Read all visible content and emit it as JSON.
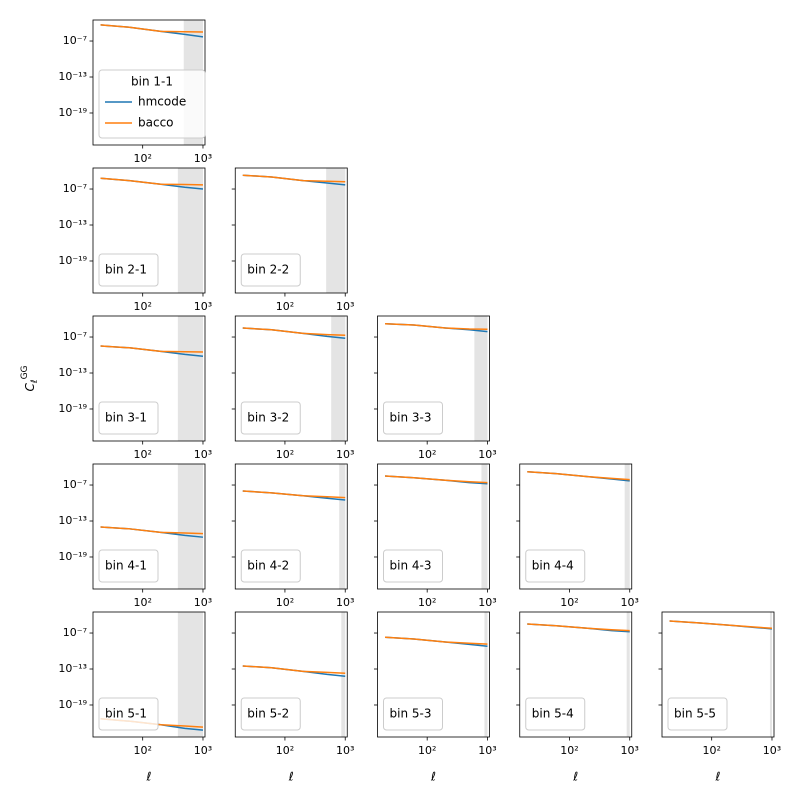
{
  "chart_data": [
    {
      "type": "line",
      "legend_title": "bin 1-1",
      "legend_loc": "lower left",
      "xscale": "log",
      "yscale": "log",
      "x": [
        20,
        60,
        200,
        500,
        1000
      ],
      "series": [
        {
          "name": "hmcode",
          "color": "#1f77b4",
          "values": [
            5e-05,
            2e-05,
            4e-06,
            1.26e-06,
            5e-07
          ]
        },
        {
          "name": "bacco",
          "color": "#ff7f0e",
          "values": [
            5e-05,
            2e-05,
            4e-06,
            3.5e-06,
            3.2e-06
          ]
        }
      ],
      "xlim": [
        15,
        1080
      ],
      "ylim": [
        4.6e-25,
        0.00032
      ],
      "xticks": [
        {
          "value": 100,
          "label": "10²"
        },
        {
          "value": 1000,
          "label": "10³"
        }
      ],
      "yticks": [
        {
          "value": 1e-19,
          "label": "10⁻¹⁹"
        },
        {
          "value": 1e-13,
          "label": "10⁻¹³"
        },
        {
          "value": 1e-07,
          "label": "10⁻⁷"
        }
      ],
      "shade": [
        480,
        1000
      ],
      "shade_color": "#e4e4e4"
    },
    {
      "type": "line",
      "legend_title": "bin 2-1",
      "legend_loc": "lower left",
      "xscale": "log",
      "yscale": "log",
      "x": [
        20,
        60,
        200,
        500,
        1000
      ],
      "series": [
        {
          "color": "#1f77b4",
          "values": [
            6.3e-06,
            2.5e-06,
            6.3e-07,
            2e-07,
            1e-07
          ]
        },
        {
          "color": "#ff7f0e",
          "values": [
            6.3e-06,
            2.5e-06,
            6.3e-07,
            5.6e-07,
            5e-07
          ]
        }
      ],
      "xlim": [
        15,
        1080
      ],
      "ylim": [
        4.6e-25,
        0.00032
      ],
      "xticks": [
        {
          "value": 100,
          "label": "10²"
        },
        {
          "value": 1000,
          "label": "10³"
        }
      ],
      "yticks": [
        {
          "value": 1e-19,
          "label": "10⁻¹⁹"
        },
        {
          "value": 1e-13,
          "label": "10⁻¹³"
        },
        {
          "value": 1e-07,
          "label": "10⁻⁷"
        }
      ],
      "shade": [
        383,
        1000
      ],
      "shade_color": "#e4e4e4"
    },
    {
      "type": "line",
      "legend_title": "bin 2-2",
      "legend_loc": "lower left",
      "xscale": "log",
      "yscale": "log",
      "x": [
        20,
        60,
        200,
        500,
        1000
      ],
      "series": [
        {
          "color": "#1f77b4",
          "values": [
            2e-05,
            1e-05,
            2.5e-06,
            1e-06,
            5e-07
          ]
        },
        {
          "color": "#ff7f0e",
          "values": [
            2e-05,
            1e-05,
            2.5e-06,
            2e-06,
            1.6e-06
          ]
        }
      ],
      "xlim": [
        15,
        1080
      ],
      "ylim": [
        4.6e-25,
        0.00032
      ],
      "xticks": [
        {
          "value": 100,
          "label": "10²"
        },
        {
          "value": 1000,
          "label": "10³"
        }
      ],
      "yticks": [
        1e-19,
        1e-13,
        1e-07
      ],
      "shade": [
        483,
        1000
      ],
      "shade_color": "#e4e4e4"
    },
    {
      "type": "line",
      "legend_title": "bin 3-1",
      "legend_loc": "lower left",
      "ylabel": "CℓGG",
      "xscale": "log",
      "yscale": "log",
      "x": [
        20,
        60,
        200,
        500,
        1000
      ],
      "series": [
        {
          "color": "#1f77b4",
          "values": [
            3.2e-09,
            1.6e-09,
            4e-10,
            1.26e-10,
            6.3e-11
          ]
        },
        {
          "color": "#ff7f0e",
          "values": [
            3.2e-09,
            1.6e-09,
            4e-10,
            3.5e-10,
            3.2e-10
          ]
        }
      ],
      "xlim": [
        15,
        1080
      ],
      "ylim": [
        4.6e-25,
        0.00032
      ],
      "xticks": [
        {
          "value": 100,
          "label": "10²"
        },
        {
          "value": 1000,
          "label": "10³"
        }
      ],
      "yticks": [
        {
          "value": 1e-19,
          "label": "10⁻¹⁹"
        },
        {
          "value": 1e-13,
          "label": "10⁻¹³"
        },
        {
          "value": 1e-07,
          "label": "10⁻⁷"
        }
      ],
      "shade": [
        383,
        1000
      ],
      "shade_color": "#e4e4e4"
    },
    {
      "type": "line",
      "legend_title": "bin 3-2",
      "legend_loc": "lower left",
      "xscale": "log",
      "yscale": "log",
      "x": [
        20,
        60,
        200,
        500,
        1000
      ],
      "series": [
        {
          "color": "#1f77b4",
          "values": [
            3.2e-06,
            1.6e-06,
            4e-07,
            1.26e-07,
            6.3e-08
          ]
        },
        {
          "color": "#ff7f0e",
          "values": [
            3.2e-06,
            1.6e-06,
            4e-07,
            2.5e-07,
            2e-07
          ]
        }
      ],
      "xlim": [
        15,
        1080
      ],
      "ylim": [
        4.6e-25,
        0.00032
      ],
      "xticks": [
        {
          "value": 100,
          "label": "10²"
        },
        {
          "value": 1000,
          "label": "10³"
        }
      ],
      "yticks": [
        1e-19,
        1e-13,
        1e-07
      ],
      "shade": [
        585,
        1000
      ],
      "shade_color": "#e4e4e4"
    },
    {
      "type": "line",
      "legend_title": "bin 3-3",
      "legend_loc": "lower left",
      "xscale": "log",
      "yscale": "log",
      "x": [
        20,
        60,
        200,
        500,
        1000
      ],
      "series": [
        {
          "color": "#1f77b4",
          "values": [
            1.6e-05,
            1e-05,
            3.2e-06,
            1.6e-06,
            7.9e-07
          ]
        },
        {
          "color": "#ff7f0e",
          "values": [
            1.6e-05,
            1e-05,
            3.2e-06,
            2.2e-06,
            2e-06
          ]
        }
      ],
      "xlim": [
        15,
        1080
      ],
      "ylim": [
        4.6e-25,
        0.00032
      ],
      "xticks": [
        {
          "value": 100,
          "label": "10²"
        },
        {
          "value": 1000,
          "label": "10³"
        }
      ],
      "yticks": [
        1e-19,
        1e-13,
        1e-07
      ],
      "shade": [
        606,
        1000
      ],
      "shade_color": "#e4e4e4"
    },
    {
      "type": "line",
      "legend_title": "bin 4-1",
      "legend_loc": "lower left",
      "xscale": "log",
      "yscale": "log",
      "x": [
        20,
        60,
        200,
        500,
        1000
      ],
      "series": [
        {
          "color": "#1f77b4",
          "values": [
            1e-14,
            5e-15,
            1.26e-15,
            4e-16,
            2e-16
          ]
        },
        {
          "color": "#ff7f0e",
          "values": [
            1e-14,
            5e-15,
            1.26e-15,
            1e-15,
            7.9e-16
          ]
        }
      ],
      "xlim": [
        15,
        1080
      ],
      "ylim": [
        4.6e-25,
        0.00032
      ],
      "xticks": [
        {
          "value": 100,
          "label": "10²"
        },
        {
          "value": 1000,
          "label": "10³"
        }
      ],
      "yticks": [
        {
          "value": 1e-19,
          "label": "10⁻¹⁹"
        },
        {
          "value": 1e-13,
          "label": "10⁻¹³"
        },
        {
          "value": 1e-07,
          "label": "10⁻⁷"
        }
      ],
      "shade": [
        383,
        1000
      ],
      "shade_color": "#e4e4e4"
    },
    {
      "type": "line",
      "legend_title": "bin 4-2",
      "legend_loc": "lower left",
      "xscale": "log",
      "yscale": "log",
      "x": [
        20,
        60,
        200,
        500,
        1000
      ],
      "series": [
        {
          "color": "#1f77b4",
          "values": [
            1e-08,
            5e-09,
            1.6e-09,
            6.3e-10,
            3.2e-10
          ]
        },
        {
          "color": "#ff7f0e",
          "values": [
            1e-08,
            5e-09,
            1.6e-09,
            1.1e-09,
            7.9e-10
          ]
        }
      ],
      "xlim": [
        15,
        1080
      ],
      "ylim": [
        4.6e-25,
        0.00032
      ],
      "xticks": [
        {
          "value": 100,
          "label": "10²"
        },
        {
          "value": 1000,
          "label": "10³"
        }
      ],
      "yticks": [
        1e-19,
        1e-13,
        1e-07
      ],
      "shade": [
        794,
        1000
      ],
      "shade_color": "#e4e4e4"
    },
    {
      "type": "line",
      "legend_title": "bin 4-3",
      "legend_loc": "lower left",
      "xscale": "log",
      "yscale": "log",
      "x": [
        20,
        60,
        200,
        500,
        1000
      ],
      "series": [
        {
          "color": "#1f77b4",
          "values": [
            3.2e-06,
            1.6e-06,
            6.3e-07,
            2.5e-07,
            1.6e-07
          ]
        },
        {
          "color": "#ff7f0e",
          "values": [
            3.2e-06,
            1.6e-06,
            6.3e-07,
            3.5e-07,
            2.5e-07
          ]
        }
      ],
      "xlim": [
        15,
        1080
      ],
      "ylim": [
        4.6e-25,
        0.00032
      ],
      "xticks": [
        {
          "value": 100,
          "label": "10²"
        },
        {
          "value": 1000,
          "label": "10³"
        }
      ],
      "yticks": [
        1e-19,
        1e-13,
        1e-07
      ],
      "shade": [
        794,
        1000
      ],
      "shade_color": "#e4e4e4"
    },
    {
      "type": "line",
      "legend_title": "bin 4-4",
      "legend_loc": "lower left",
      "xscale": "log",
      "yscale": "log",
      "x": [
        20,
        60,
        200,
        500,
        1000
      ],
      "series": [
        {
          "color": "#1f77b4",
          "values": [
            1.6e-05,
            7.9e-06,
            2.5e-06,
            1e-06,
            5e-07
          ]
        },
        {
          "color": "#ff7f0e",
          "values": [
            1.6e-05,
            7.9e-06,
            2.5e-06,
            1.26e-06,
            7.9e-07
          ]
        }
      ],
      "xlim": [
        15,
        1080
      ],
      "ylim": [
        4.6e-25,
        0.00032
      ],
      "xticks": [
        {
          "value": 100,
          "label": "10²"
        },
        {
          "value": 1000,
          "label": "10³"
        }
      ],
      "yticks": [
        1e-19,
        1e-13,
        1e-07
      ],
      "shade": [
        825,
        1000
      ],
      "shade_color": "#e4e4e4"
    },
    {
      "type": "line",
      "legend_title": "bin 5-1",
      "legend_loc": "lower left",
      "xlabel": "ℓ",
      "xscale": "log",
      "yscale": "log",
      "x": [
        20,
        60,
        200,
        500,
        1000
      ],
      "series": [
        {
          "color": "#1f77b4",
          "values": [
            5e-22,
            2e-22,
            5e-23,
            1.26e-23,
            6.3e-24
          ]
        },
        {
          "color": "#ff7f0e",
          "values": [
            5e-22,
            2e-22,
            5e-23,
            3.2e-23,
            2e-23
          ]
        }
      ],
      "xlim": [
        15,
        1080
      ],
      "ylim": [
        4.6e-25,
        0.00032
      ],
      "xticks": [
        {
          "value": 100,
          "label": "10²"
        },
        {
          "value": 1000,
          "label": "10³"
        }
      ],
      "yticks": [
        {
          "value": 1e-19,
          "label": "10⁻¹⁹"
        },
        {
          "value": 1e-13,
          "label": "10⁻¹³"
        },
        {
          "value": 1e-07,
          "label": "10⁻⁷"
        }
      ],
      "shade": [
        383,
        1000
      ],
      "shade_color": "#e4e4e4"
    },
    {
      "type": "line",
      "legend_title": "bin 5-2",
      "legend_loc": "lower left",
      "xlabel": "ℓ",
      "xscale": "log",
      "yscale": "log",
      "x": [
        20,
        60,
        200,
        500,
        1000
      ],
      "series": [
        {
          "color": "#1f77b4",
          "values": [
            3.2e-13,
            1.6e-13,
            4e-14,
            1.26e-14,
            6.3e-15
          ]
        },
        {
          "color": "#ff7f0e",
          "values": [
            3.2e-13,
            1.6e-13,
            4e-14,
            2.8e-14,
            2e-14
          ]
        }
      ],
      "xlim": [
        15,
        1080
      ],
      "ylim": [
        4.6e-25,
        0.00032
      ],
      "xticks": [
        {
          "value": 100,
          "label": "10²"
        },
        {
          "value": 1000,
          "label": "10³"
        }
      ],
      "yticks": [
        1e-19,
        1e-13,
        1e-07
      ],
      "shade": [
        860,
        1000
      ],
      "shade_color": "#e4e4e4"
    },
    {
      "type": "line",
      "legend_title": "bin 5-3",
      "legend_loc": "lower left",
      "xlabel": "ℓ",
      "xscale": "log",
      "yscale": "log",
      "x": [
        20,
        60,
        200,
        500,
        1000
      ],
      "series": [
        {
          "color": "#1f77b4",
          "values": [
            2e-08,
            1e-08,
            3.2e-09,
            1.26e-09,
            6.3e-10
          ]
        },
        {
          "color": "#ff7f0e",
          "values": [
            2e-08,
            1e-08,
            3.2e-09,
            2e-09,
            1.4e-09
          ]
        }
      ],
      "xlim": [
        15,
        1080
      ],
      "ylim": [
        4.6e-25,
        0.00032
      ],
      "xticks": [
        {
          "value": 100,
          "label": "10²"
        },
        {
          "value": 1000,
          "label": "10³"
        }
      ],
      "yticks": [
        1e-19,
        1e-13,
        1e-07
      ],
      "shade": [
        890,
        1000
      ],
      "shade_color": "#e4e4e4"
    },
    {
      "type": "line",
      "legend_title": "bin 5-4",
      "legend_loc": "lower left",
      "xlabel": "ℓ",
      "xscale": "log",
      "yscale": "log",
      "x": [
        20,
        60,
        200,
        500,
        1000
      ],
      "series": [
        {
          "color": "#1f77b4",
          "values": [
            3.2e-06,
            1.6e-06,
            6.3e-07,
            2.5e-07,
            1.6e-07
          ]
        },
        {
          "color": "#ff7f0e",
          "values": [
            3.2e-06,
            1.6e-06,
            6.3e-07,
            3.5e-07,
            2.5e-07
          ]
        }
      ],
      "xlim": [
        15,
        1080
      ],
      "ylim": [
        4.6e-25,
        0.00032
      ],
      "xticks": [
        {
          "value": 100,
          "label": "10²"
        },
        {
          "value": 1000,
          "label": "10³"
        }
      ],
      "yticks": [
        1e-19,
        1e-13,
        1e-07
      ],
      "shade": [
        890,
        1000
      ],
      "shade_color": "#e4e4e4"
    },
    {
      "type": "line",
      "legend_title": "bin 5-5",
      "legend_loc": "lower left",
      "xlabel": "ℓ",
      "xscale": "log",
      "yscale": "log",
      "x": [
        20,
        60,
        200,
        500,
        1000
      ],
      "series": [
        {
          "color": "#1f77b4",
          "values": [
            1e-05,
            5e-06,
            2e-06,
            8.9e-07,
            5e-07
          ]
        },
        {
          "color": "#ff7f0e",
          "values": [
            1e-05,
            5e-06,
            2e-06,
            1e-06,
            6.3e-07
          ]
        }
      ],
      "xlim": [
        15,
        1080
      ],
      "ylim": [
        4.6e-25,
        0.00032
      ],
      "xticks": [
        {
          "value": 100,
          "label": "10²"
        },
        {
          "value": 1000,
          "label": "10³"
        }
      ],
      "yticks": [
        1e-19,
        1e-13,
        1e-07
      ],
      "shade": [
        925,
        1000
      ],
      "shade_color": "#e4e4e4"
    }
  ]
}
